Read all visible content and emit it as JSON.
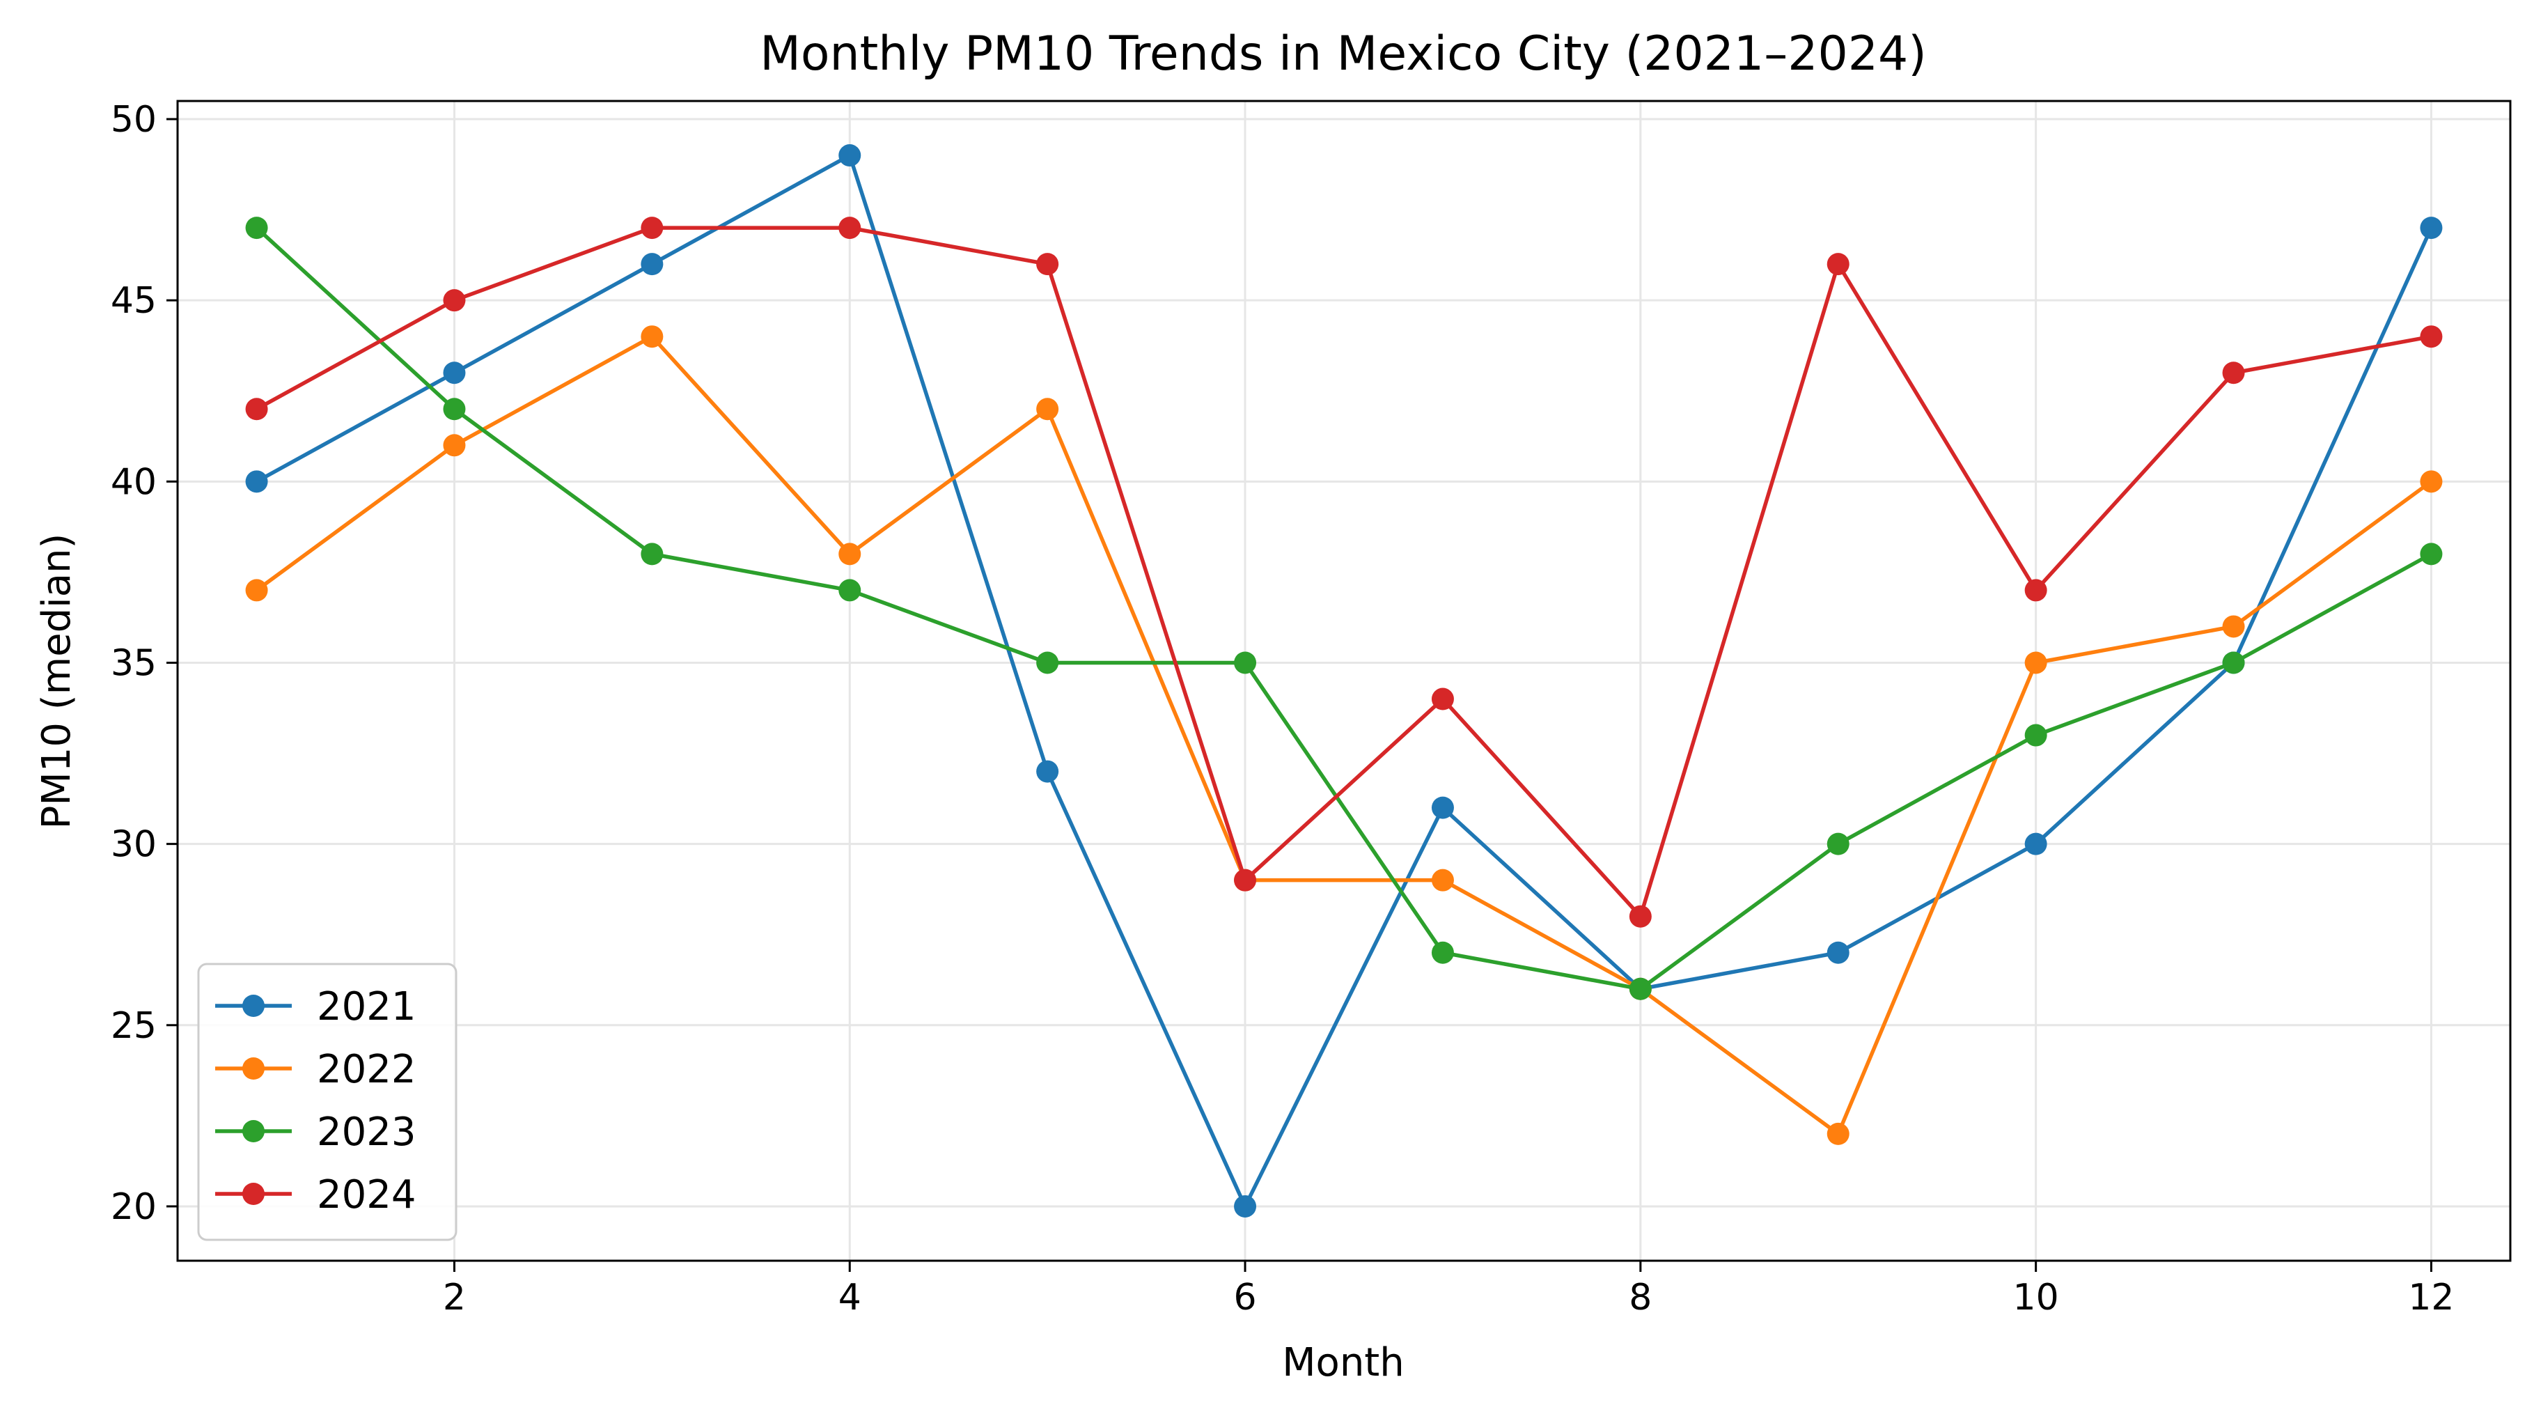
{
  "chart_data": {
    "type": "line",
    "title": "Monthly PM10 Trends in Mexico City (2021–2024)",
    "xlabel": "Month",
    "ylabel": "PM10 (median)",
    "x": [
      1,
      2,
      3,
      4,
      5,
      6,
      7,
      8,
      9,
      10,
      11,
      12
    ],
    "xlim": [
      0.6,
      12.4
    ],
    "ylim": [
      18.5,
      50.5
    ],
    "xticks": [
      2,
      4,
      6,
      8,
      10,
      12
    ],
    "yticks": [
      20,
      25,
      30,
      35,
      40,
      45,
      50
    ],
    "grid": true,
    "legend_position": "lower-left",
    "series": [
      {
        "name": "2021",
        "color": "#1f77b4",
        "values": [
          40,
          43,
          46,
          49,
          32,
          20,
          31,
          26,
          27,
          30,
          35,
          47
        ]
      },
      {
        "name": "2022",
        "color": "#ff7f0e",
        "values": [
          37,
          41,
          44,
          38,
          42,
          29,
          29,
          26,
          22,
          35,
          36,
          40
        ]
      },
      {
        "name": "2023",
        "color": "#2ca02c",
        "values": [
          47,
          42,
          38,
          37,
          35,
          35,
          27,
          26,
          30,
          33,
          35,
          38
        ]
      },
      {
        "name": "2024",
        "color": "#d62728",
        "values": [
          42,
          45,
          47,
          47,
          46,
          29,
          34,
          28,
          46,
          37,
          43,
          44
        ]
      }
    ]
  }
}
